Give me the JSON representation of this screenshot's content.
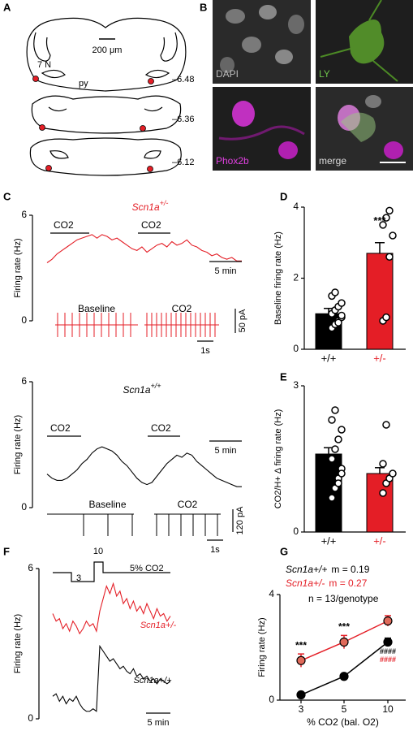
{
  "panel_labels": [
    "A",
    "B",
    "C",
    "D",
    "E",
    "F",
    "G"
  ],
  "panel_a": {
    "scale_bar": "200 μm",
    "labels": [
      "7 N",
      "py"
    ],
    "levels": [
      "–6.48",
      "–6.36",
      "–6.12"
    ]
  },
  "panel_b": {
    "channels": [
      "DAPI",
      "LY",
      "Phox2b",
      "merge"
    ]
  },
  "chart_data": [
    {
      "type": "trace",
      "title": {
        "gene": "Scn1a",
        "genotype": "+/-"
      },
      "color": "#e41e26",
      "ylabel": "Firing rate (Hz)",
      "ylim": [
        0,
        6
      ],
      "yticks": [
        0,
        6
      ],
      "stimulus_labels": [
        "CO2",
        "CO2"
      ],
      "time_scale": "5 min",
      "values": [
        3.3,
        3.5,
        3.8,
        4.0,
        4.2,
        4.4,
        4.6,
        4.7,
        4.8,
        4.9,
        4.7,
        4.9,
        4.8,
        4.6,
        4.7,
        4.5,
        4.3,
        4.1,
        4.0,
        4.2,
        3.9,
        4.1,
        4.3,
        4.4,
        4.2,
        4.5,
        4.3,
        4.4,
        4.6,
        4.3,
        4.2,
        4.0,
        3.9,
        3.7,
        3.8,
        3.6,
        3.5,
        3.6,
        3.4,
        3.4
      ],
      "patch": {
        "labels": [
          "Baseline",
          "CO2"
        ],
        "amplitude_scale": "50 pA",
        "time_scale": "1s"
      }
    },
    {
      "type": "trace",
      "title": {
        "gene": "Scn1a",
        "genotype": "+/+"
      },
      "color": "#000000",
      "ylabel": "Firing rate (Hz)",
      "ylim": [
        0,
        6
      ],
      "yticks": [
        0,
        6
      ],
      "stimulus_labels": [
        "CO2",
        "CO2"
      ],
      "time_scale": "5 min",
      "values": [
        1.6,
        1.4,
        1.3,
        1.3,
        1.4,
        1.6,
        1.8,
        2.1,
        2.3,
        2.6,
        2.8,
        2.9,
        2.8,
        2.7,
        2.5,
        2.2,
        2.0,
        1.7,
        1.4,
        1.2,
        1.1,
        1.2,
        1.5,
        1.8,
        2.1,
        2.3,
        2.5,
        2.4,
        2.6,
        2.5,
        2.2,
        2.0,
        1.8,
        1.6,
        1.4,
        1.3,
        1.2,
        1.1,
        1.0,
        1.0
      ],
      "patch": {
        "labels": [
          "Baseline",
          "CO2"
        ],
        "amplitude_scale": "120 pA",
        "time_scale": "1s"
      }
    },
    {
      "type": "bar",
      "ylabel": "Baseline firing rate (Hz)",
      "ylim": [
        0,
        4
      ],
      "yticks": [
        0,
        2,
        4
      ],
      "categories": [
        "+/+",
        "+/-"
      ],
      "colors": [
        "#000000",
        "#e41e26"
      ],
      "values": [
        1.0,
        2.7
      ],
      "errors": [
        0.15,
        0.3
      ],
      "points": [
        [
          0.6,
          0.7,
          0.8,
          0.9,
          1.0,
          1.1,
          1.2,
          1.3,
          1.5,
          1.6,
          0.75,
          0.95
        ],
        [
          0.8,
          0.9,
          2.6,
          3.2,
          3.5,
          3.7,
          3.9
        ]
      ],
      "annotations": [
        {
          "text": "***",
          "category": "+/-"
        }
      ]
    },
    {
      "type": "bar",
      "ylabel": "CO2/H+ Δ firing rate (Hz)",
      "ylim": [
        0,
        3
      ],
      "yticks": [
        0,
        3
      ],
      "categories": [
        "+/+",
        "+/-"
      ],
      "colors": [
        "#000000",
        "#e41e26"
      ],
      "values": [
        1.6,
        1.2
      ],
      "errors": [
        0.13,
        0.12
      ],
      "points": [
        [
          0.7,
          0.9,
          1.1,
          1.3,
          1.5,
          1.7,
          1.9,
          2.1,
          2.3,
          2.5,
          1.0,
          1.2
        ],
        [
          0.8,
          1.0,
          1.1,
          1.2,
          1.4,
          2.2
        ]
      ]
    },
    {
      "type": "trace",
      "ylabel": "Firing rate (Hz)",
      "ylim": [
        0,
        6
      ],
      "yticks": [
        0,
        6
      ],
      "protocol_labels": [
        "3",
        "10",
        "5% CO2"
      ],
      "time_scale": "5 min",
      "series": [
        {
          "name": "Scn1a+/-",
          "color": "#e41e26",
          "values": [
            4.2,
            3.9,
            4.0,
            3.6,
            3.8,
            3.5,
            3.9,
            3.7,
            3.4,
            3.6,
            3.9,
            3.7,
            3.8,
            3.5,
            4.3,
            4.8,
            5.3,
            5.0,
            5.4,
            4.9,
            5.1,
            4.6,
            4.8,
            4.4,
            4.7,
            4.3,
            4.5,
            4.2,
            4.6,
            4.3,
            4.0,
            4.4,
            4.1,
            4.2,
            3.9,
            4.1
          ]
        },
        {
          "name": "Scn1a+/+",
          "color": "#000000",
          "values": [
            0.9,
            1.0,
            0.7,
            0.9,
            0.6,
            0.8,
            0.7,
            0.9,
            0.6,
            0.4,
            0.3,
            0.3,
            0.4,
            0.3,
            2.9,
            2.7,
            2.5,
            2.3,
            2.4,
            2.2,
            2.0,
            2.1,
            1.9,
            1.8,
            2.0,
            1.7,
            1.8,
            1.6,
            1.7,
            1.5,
            1.6,
            1.4,
            1.6,
            1.5,
            1.4,
            1.5
          ]
        }
      ]
    },
    {
      "type": "line",
      "ylabel": "Firing rate (Hz)",
      "xlabel": "% CO2 (bal. O2)",
      "ylim": [
        0,
        4
      ],
      "yticks": [
        0,
        4
      ],
      "categories": [
        "3",
        "5",
        "10"
      ],
      "series": [
        {
          "name": "Scn1a+/+",
          "color": "#000000",
          "values": [
            0.2,
            0.9,
            2.2
          ],
          "errors": [
            0.05,
            0.1,
            0.15
          ]
        },
        {
          "name": "Scn1a+/-",
          "color": "#e41e26",
          "values": [
            1.5,
            2.2,
            3.0
          ],
          "errors": [
            0.25,
            0.25,
            0.2
          ]
        }
      ],
      "slope_labels": [
        "m = 0.19",
        "m = 0.27"
      ],
      "note": "n = 13/genotype",
      "annotations": [
        {
          "text": "***",
          "category": "3"
        },
        {
          "text": "***",
          "category": "5"
        },
        {
          "text": "####",
          "category": "10",
          "color": "#000000"
        },
        {
          "text": "####",
          "category": "10",
          "color": "#e41e26"
        }
      ]
    }
  ]
}
